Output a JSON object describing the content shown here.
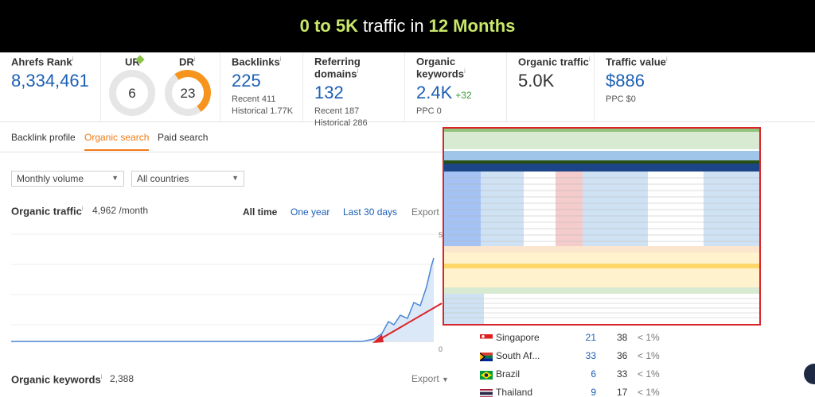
{
  "banner": {
    "part1": "0 to 5K",
    "part2": "traffic in",
    "part3": "12 Months"
  },
  "metrics": {
    "ahrefs_rank": {
      "label": "Ahrefs Rank",
      "value": "8,334,461"
    },
    "ur": {
      "label": "UR",
      "value": "6"
    },
    "dr": {
      "label": "DR",
      "value": "23"
    },
    "backlinks": {
      "label": "Backlinks",
      "value": "225",
      "recent": "Recent 411",
      "historical": "Historical 1.77K"
    },
    "referring_domains": {
      "label": "Referring domains",
      "value": "132",
      "recent": "Recent 187",
      "historical": "Historical 286"
    },
    "organic_keywords": {
      "label": "Organic keywords",
      "value": "2.4K",
      "delta": "+32",
      "ppc": "PPC 0"
    },
    "organic_traffic": {
      "label": "Organic traffic",
      "value": "5.0K"
    },
    "traffic_value": {
      "label": "Traffic value",
      "value": "$886",
      "ppc": "PPC $0"
    }
  },
  "tabs": [
    "Backlink profile",
    "Organic search",
    "Paid search"
  ],
  "filters": {
    "volume": "Monthly volume",
    "countries": "All countries"
  },
  "organic_traffic_section": {
    "title": "Organic traffic",
    "value": "4,962 /month",
    "ranges": [
      "All time",
      "One year",
      "Last 30 days"
    ],
    "export": "Export"
  },
  "chart_axis": {
    "y_top": "5",
    "y_bottom": "0"
  },
  "organic_keywords_section": {
    "title": "Organic keywords",
    "value": "2,388",
    "export": "Export"
  },
  "countries": [
    {
      "name": "Singapore",
      "keywords": "21",
      "pos": "38",
      "pct": "< 1%"
    },
    {
      "name": "South Af...",
      "keywords": "33",
      "pos": "36",
      "pct": "< 1%"
    },
    {
      "name": "Brazil",
      "keywords": "6",
      "pos": "33",
      "pct": "< 1%"
    },
    {
      "name": "Thailand",
      "keywords": "9",
      "pos": "17",
      "pct": "< 1%"
    }
  ],
  "colors": {
    "accent": "#f07b16",
    "link": "#1b5fb5",
    "banner_highlight": "#c9e86a",
    "overlay_border": "#d9252a"
  }
}
